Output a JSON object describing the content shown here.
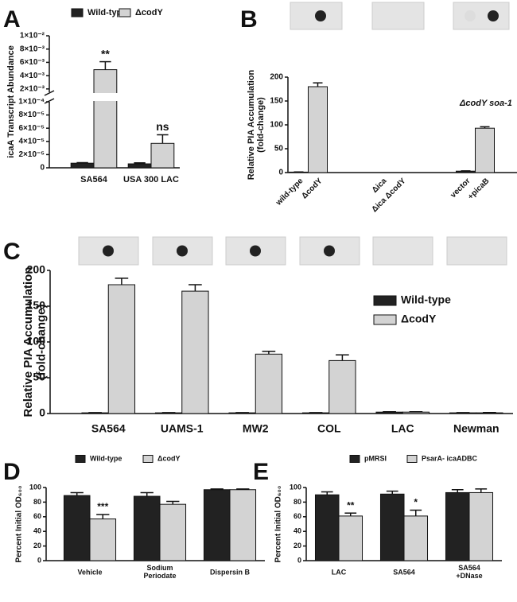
{
  "chart_data": [
    {
      "panel": "A",
      "type": "bar",
      "ylabel": "icaA Transcript Abundance",
      "categories": [
        "SA564",
        "USA 300 LAC"
      ],
      "series": [
        {
          "name": "Wild-type",
          "color": "#222222",
          "values": [
            7e-06,
            6e-06
          ],
          "errors": [
            8e-07,
            1.5e-06
          ]
        },
        {
          "name": "ΔcodY",
          "color": "#d3d3d3",
          "values": [
            0.0049,
            3.7e-05
          ],
          "errors": [
            0.0012,
            1.3e-05
          ]
        }
      ],
      "ylim": [
        0,
        0.01
      ],
      "y_break": [
        0.0001,
        0.0015
      ],
      "yticks": [
        0,
        {
          "value": 2e-05,
          "label": "2×10⁻⁵"
        },
        {
          "value": 4e-05,
          "label": "4×10⁻⁵"
        },
        {
          "value": 6e-05,
          "label": "6×10⁻⁵"
        },
        {
          "value": 8e-05,
          "label": "8×10⁻⁵"
        },
        {
          "value": 0.0001,
          "label": "1×10⁻⁴"
        },
        {
          "value": 0.002,
          "label": "2×10⁻³"
        },
        {
          "value": 0.004,
          "label": "4×10⁻³"
        },
        {
          "value": 0.006,
          "label": "6×10⁻³"
        },
        {
          "value": 0.008,
          "label": "8×10⁻³"
        },
        {
          "value": 0.01,
          "label": "1×10⁻²"
        }
      ],
      "annotations": [
        {
          "text": "**",
          "category": 0,
          "series": 1
        },
        {
          "text": "ns",
          "category": 1,
          "series": 1
        }
      ],
      "legend": "top"
    },
    {
      "panel": "B",
      "type": "bar",
      "ylabel": "Relative PIA Accumulation\n(fold-change)",
      "categories": [
        "wild-type",
        "ΔcodY",
        "Δica",
        "Δica ΔcodY",
        "vector",
        "+picaB"
      ],
      "values": [
        1,
        180,
        null,
        null,
        3,
        93
      ],
      "errors": [
        0.3,
        8,
        null,
        null,
        0.6,
        3
      ],
      "colors": [
        "#222222",
        "#d3d3d3",
        "#222222",
        "#d3d3d3",
        "#222222",
        "#d3d3d3"
      ],
      "ylim": [
        0,
        200
      ],
      "yticks": [
        0,
        50,
        100,
        150,
        200
      ],
      "note": "ΔcodY soa-1"
    },
    {
      "panel": "C",
      "type": "bar",
      "ylabel": "Relative PIA Accumulation\n(fold-change)",
      "categories": [
        "SA564",
        "UAMS-1",
        "MW2",
        "COL",
        "LAC",
        "Newman"
      ],
      "series": [
        {
          "name": "Wild-type",
          "color": "#222222",
          "values": [
            1,
            1,
            1,
            1,
            2,
            1
          ],
          "errors": [
            0.3,
            0.3,
            0.3,
            0.3,
            0.5,
            0.3
          ]
        },
        {
          "name": "ΔcodY",
          "color": "#d3d3d3",
          "values": [
            180,
            171,
            83,
            74,
            2,
            1
          ],
          "errors": [
            9,
            9,
            4,
            8,
            0.5,
            0.4
          ]
        }
      ],
      "ylim": [
        0,
        200
      ],
      "yticks": [
        0,
        50,
        100,
        150,
        200
      ],
      "legend": "right"
    },
    {
      "panel": "D",
      "type": "bar",
      "ylabel": "Percent Initial OD₆₀₀",
      "categories": [
        "Vehicle",
        "Sodium\nPeriodate",
        "Dispersin B"
      ],
      "series": [
        {
          "name": "Wild-type",
          "color": "#222222",
          "values": [
            89,
            88,
            97
          ],
          "errors": [
            4,
            5,
            1
          ]
        },
        {
          "name": "ΔcodY",
          "color": "#d3d3d3",
          "values": [
            57,
            77,
            97
          ],
          "errors": [
            6,
            4,
            1
          ]
        }
      ],
      "ylim": [
        0,
        100
      ],
      "yticks": [
        0,
        20,
        40,
        60,
        80,
        100
      ],
      "annotations": [
        {
          "text": "***",
          "category": 0,
          "series": 1
        }
      ],
      "legend": "top"
    },
    {
      "panel": "E",
      "type": "bar",
      "ylabel": "Percent Initial OD₆₀₀",
      "categories": [
        "LAC",
        "SA564",
        "SA564\n+DNase"
      ],
      "series": [
        {
          "name": "pMRSI",
          "color": "#222222",
          "values": [
            90,
            91,
            93
          ],
          "errors": [
            4,
            4,
            4
          ]
        },
        {
          "name": "PsarA- icaADBC",
          "color": "#d3d3d3",
          "values": [
            61,
            61,
            93
          ],
          "errors": [
            4,
            8,
            5
          ]
        }
      ],
      "ylim": [
        0,
        100
      ],
      "yticks": [
        0,
        20,
        40,
        60,
        80,
        100
      ],
      "annotations": [
        {
          "text": "**",
          "category": 0,
          "series": 1
        },
        {
          "text": "*",
          "category": 1,
          "series": 1
        }
      ],
      "legend": "top"
    }
  ]
}
